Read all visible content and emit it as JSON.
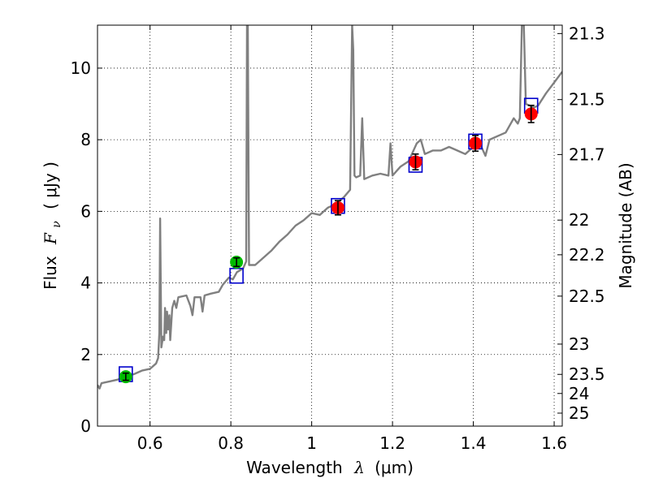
{
  "chart_data": {
    "type": "line",
    "xlabel_text": "Wavelength",
    "xlabel_symbol": "λ",
    "xlabel_unit": "(μm)",
    "ylabel_text": "Flux",
    "ylabel_symbol": "F",
    "ylabel_subscript": "ν",
    "ylabel_unit": "( μJy )",
    "y2label": "Magnitude (AB)",
    "xlim": [
      0.47,
      1.62
    ],
    "ylim": [
      0,
      11.2
    ],
    "grid": true,
    "x_ticks": [
      {
        "value": 0.6,
        "label": "0.6"
      },
      {
        "value": 0.8,
        "label": "0.8"
      },
      {
        "value": 1.0,
        "label": "1"
      },
      {
        "value": 1.2,
        "label": "1.2"
      },
      {
        "value": 1.4,
        "label": "1.4"
      },
      {
        "value": 1.6,
        "label": "1.6"
      }
    ],
    "y_ticks": [
      {
        "value": 0,
        "label": "0"
      },
      {
        "value": 2,
        "label": "2"
      },
      {
        "value": 4,
        "label": "4"
      },
      {
        "value": 6,
        "label": "6"
      },
      {
        "value": 8,
        "label": "8"
      },
      {
        "value": 10,
        "label": "10"
      }
    ],
    "mag_ticks": [
      {
        "value": 21.3,
        "label": "21.3"
      },
      {
        "value": 21.5,
        "label": "21.5"
      },
      {
        "value": 21.7,
        "label": "21.7"
      },
      {
        "value": 22.0,
        "label": "22"
      },
      {
        "value": 22.2,
        "label": "22.2"
      },
      {
        "value": 22.5,
        "label": "22.5"
      },
      {
        "value": 23.0,
        "label": "23"
      },
      {
        "value": 23.5,
        "label": "23.5"
      },
      {
        "value": 24.0,
        "label": "24"
      },
      {
        "value": 25.0,
        "label": "25"
      }
    ],
    "colors": {
      "spectrum": "#808080",
      "model_box": "#0000cc",
      "obs_green": "#00bb00",
      "obs_red": "#ff0000",
      "errorbar": "#000000",
      "grid": "#000000"
    },
    "spectrum": [
      [
        0.47,
        1.15
      ],
      [
        0.475,
        1.05
      ],
      [
        0.48,
        1.2
      ],
      [
        0.5,
        1.25
      ],
      [
        0.52,
        1.3
      ],
      [
        0.54,
        1.4
      ],
      [
        0.56,
        1.45
      ],
      [
        0.58,
        1.55
      ],
      [
        0.6,
        1.6
      ],
      [
        0.615,
        1.75
      ],
      [
        0.62,
        1.9
      ],
      [
        0.623,
        2.6
      ],
      [
        0.625,
        5.8
      ],
      [
        0.628,
        2.2
      ],
      [
        0.632,
        2.5
      ],
      [
        0.635,
        2.4
      ],
      [
        0.637,
        3.3
      ],
      [
        0.64,
        2.6
      ],
      [
        0.642,
        3.2
      ],
      [
        0.645,
        2.7
      ],
      [
        0.648,
        3.1
      ],
      [
        0.65,
        2.4
      ],
      [
        0.655,
        3.3
      ],
      [
        0.66,
        3.5
      ],
      [
        0.665,
        3.3
      ],
      [
        0.67,
        3.6
      ],
      [
        0.69,
        3.65
      ],
      [
        0.7,
        3.35
      ],
      [
        0.705,
        3.1
      ],
      [
        0.71,
        3.6
      ],
      [
        0.725,
        3.6
      ],
      [
        0.73,
        3.2
      ],
      [
        0.735,
        3.65
      ],
      [
        0.75,
        3.7
      ],
      [
        0.77,
        3.75
      ],
      [
        0.78,
        3.95
      ],
      [
        0.795,
        4.15
      ],
      [
        0.805,
        4.1
      ],
      [
        0.815,
        4.3
      ],
      [
        0.83,
        4.4
      ],
      [
        0.838,
        4.6
      ],
      [
        0.84,
        11.2
      ],
      [
        0.842,
        11.2
      ],
      [
        0.845,
        4.5
      ],
      [
        0.86,
        4.5
      ],
      [
        0.87,
        4.6
      ],
      [
        0.9,
        4.9
      ],
      [
        0.92,
        5.15
      ],
      [
        0.94,
        5.35
      ],
      [
        0.96,
        5.6
      ],
      [
        0.98,
        5.75
      ],
      [
        1.0,
        5.95
      ],
      [
        1.02,
        5.9
      ],
      [
        1.04,
        6.1
      ],
      [
        1.06,
        6.2
      ],
      [
        1.08,
        6.4
      ],
      [
        1.095,
        6.6
      ],
      [
        1.1,
        11.2
      ],
      [
        1.103,
        10.5
      ],
      [
        1.106,
        7.0
      ],
      [
        1.11,
        6.95
      ],
      [
        1.12,
        7.0
      ],
      [
        1.125,
        8.6
      ],
      [
        1.13,
        6.9
      ],
      [
        1.15,
        7.0
      ],
      [
        1.17,
        7.05
      ],
      [
        1.19,
        7.0
      ],
      [
        1.195,
        7.9
      ],
      [
        1.2,
        7.0
      ],
      [
        1.22,
        7.25
      ],
      [
        1.24,
        7.4
      ],
      [
        1.26,
        7.9
      ],
      [
        1.27,
        8.0
      ],
      [
        1.28,
        7.6
      ],
      [
        1.3,
        7.7
      ],
      [
        1.32,
        7.7
      ],
      [
        1.34,
        7.8
      ],
      [
        1.36,
        7.7
      ],
      [
        1.38,
        7.6
      ],
      [
        1.4,
        7.8
      ],
      [
        1.42,
        7.8
      ],
      [
        1.43,
        7.55
      ],
      [
        1.44,
        8.0
      ],
      [
        1.46,
        8.1
      ],
      [
        1.48,
        8.2
      ],
      [
        1.5,
        8.6
      ],
      [
        1.51,
        8.45
      ],
      [
        1.515,
        8.6
      ],
      [
        1.52,
        11.2
      ],
      [
        1.525,
        11.2
      ],
      [
        1.53,
        9.0
      ],
      [
        1.55,
        8.9
      ],
      [
        1.56,
        8.95
      ],
      [
        1.58,
        9.3
      ],
      [
        1.6,
        9.6
      ],
      [
        1.62,
        9.9
      ]
    ],
    "model_points": [
      {
        "x": 0.54,
        "y": 1.45
      },
      {
        "x": 0.814,
        "y": 4.2
      },
      {
        "x": 1.065,
        "y": 6.15
      },
      {
        "x": 1.257,
        "y": 7.3
      },
      {
        "x": 1.405,
        "y": 7.95
      },
      {
        "x": 1.543,
        "y": 8.95
      }
    ],
    "observed_points": [
      {
        "x": 0.54,
        "y": 1.38,
        "err": 0.1,
        "color": "#00bb00"
      },
      {
        "x": 0.814,
        "y": 4.58,
        "err": 0.12,
        "color": "#00bb00"
      },
      {
        "x": 1.065,
        "y": 6.1,
        "err": 0.2,
        "color": "#ff0000"
      },
      {
        "x": 1.257,
        "y": 7.38,
        "err": 0.22,
        "color": "#ff0000"
      },
      {
        "x": 1.405,
        "y": 7.9,
        "err": 0.22,
        "color": "#ff0000"
      },
      {
        "x": 1.543,
        "y": 8.72,
        "err": 0.24,
        "color": "#ff0000"
      }
    ]
  }
}
